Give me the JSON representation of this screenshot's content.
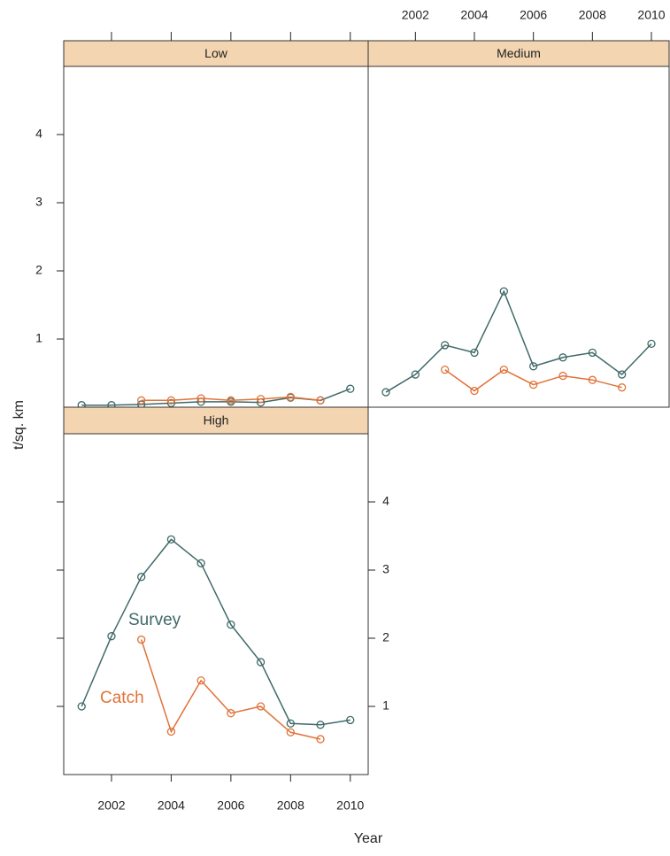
{
  "axis_labels": {
    "x": "Year",
    "y": "t/sq. km"
  },
  "chart_data": [
    {
      "type": "line",
      "title": "Low",
      "x": [
        2001,
        2002,
        2003,
        2004,
        2005,
        2006,
        2007,
        2008,
        2009,
        2010
      ],
      "series": [
        {
          "color": "#3f6a68",
          "values": [
            0.03,
            0.03,
            0.04,
            0.06,
            0.08,
            0.08,
            0.07,
            0.14,
            0.1,
            0.27
          ]
        },
        {
          "color": "#e0733a",
          "values": [
            null,
            null,
            0.1,
            0.1,
            0.13,
            0.1,
            0.12,
            0.15,
            0.1,
            null
          ]
        }
      ],
      "xlim": [
        2000.4,
        2010.6
      ],
      "ylim": [
        0,
        5
      ],
      "xticks": [
        2002,
        2004,
        2006,
        2008,
        2010
      ],
      "yticks": [
        1,
        2,
        3,
        4
      ]
    },
    {
      "type": "line",
      "title": "Medium",
      "x": [
        2001,
        2002,
        2003,
        2004,
        2005,
        2006,
        2007,
        2008,
        2009,
        2010
      ],
      "series": [
        {
          "color": "#3f6a68",
          "values": [
            0.22,
            0.48,
            0.91,
            0.8,
            1.7,
            0.6,
            0.73,
            0.8,
            0.48,
            0.93
          ]
        },
        {
          "color": "#e0733a",
          "values": [
            null,
            null,
            0.55,
            0.24,
            0.55,
            0.33,
            0.46,
            0.4,
            0.29,
            null
          ]
        }
      ],
      "xlim": [
        2000.4,
        2010.6
      ],
      "ylim": [
        0,
        5
      ],
      "xticks": [
        2002,
        2004,
        2006,
        2008,
        2010
      ]
    },
    {
      "type": "line",
      "title": "High",
      "x": [
        2001,
        2002,
        2003,
        2004,
        2005,
        2006,
        2007,
        2008,
        2009,
        2010
      ],
      "series": [
        {
          "name": "Survey",
          "color": "#3f6a68",
          "values": [
            1.0,
            2.03,
            2.9,
            3.45,
            3.1,
            2.2,
            1.65,
            0.75,
            0.73,
            0.8
          ]
        },
        {
          "name": "Catch",
          "color": "#e0733a",
          "values": [
            null,
            null,
            1.98,
            0.63,
            1.38,
            0.9,
            1.0,
            0.62,
            0.52,
            null
          ]
        }
      ],
      "xlim": [
        2000.4,
        2010.6
      ],
      "ylim": [
        0,
        5
      ],
      "xticks": [
        2002,
        2004,
        2006,
        2008,
        2010
      ],
      "yticks": [
        1,
        2,
        3,
        4
      ]
    }
  ]
}
